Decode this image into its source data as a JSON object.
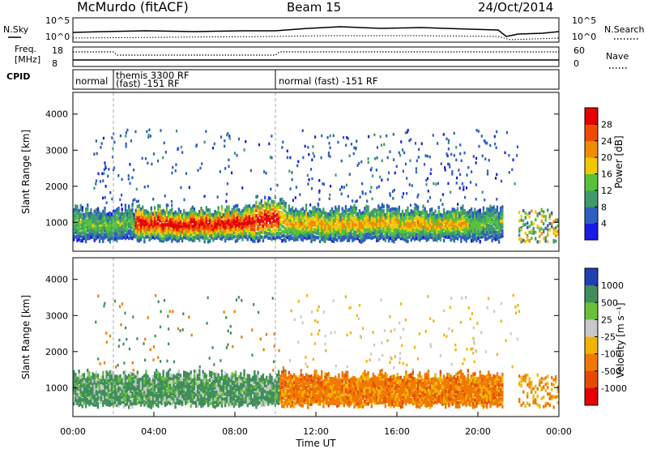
{
  "header": {
    "title": "McMurdo (fitACF)",
    "beam": "Beam 15",
    "date": "24/Oct/2014"
  },
  "top_panels": {
    "nsky_label": "N.Sky",
    "nsearch_label": "N.Search",
    "noise_ticks": [
      "10^5",
      "10^0"
    ],
    "freq_label": "Freq.",
    "freq_unit": "[MHz]",
    "freq_ticks": [
      "18",
      "8"
    ],
    "nave_ticks": [
      "60",
      "0"
    ],
    "nave_label": "Nave",
    "cpid_label": "CPID",
    "cpid_segments": [
      {
        "start_hour": 0.0,
        "end_hour": 2.0,
        "label": "normal"
      },
      {
        "start_hour": 2.0,
        "end_hour": 10.0,
        "label": "themis 3300 RF (fast) -151 RF"
      },
      {
        "start_hour": 10.0,
        "end_hour": 24.0,
        "label": "normal (fast) -151 RF"
      }
    ]
  },
  "chart_data": [
    {
      "type": "heatmap",
      "name": "power",
      "ylabel": "Slant Range [km]",
      "ylim": [
        200,
        4600
      ],
      "yticks": [
        "1000",
        "2000",
        "3000",
        "4000"
      ],
      "xlim": [
        0,
        24
      ],
      "colorbar_label": "Power [dB]",
      "colorbar_ticks": [
        "4",
        "8",
        "12",
        "16",
        "20",
        "24",
        "28"
      ],
      "colorbar_colors": [
        "#1a1ae6",
        "#2d5fbf",
        "#3f9a6e",
        "#55c23a",
        "#f0c800",
        "#f08c00",
        "#f04b00",
        "#e60000"
      ]
    },
    {
      "type": "heatmap",
      "name": "velocity",
      "ylabel": "Slant Range [km]",
      "ylim": [
        200,
        4600
      ],
      "yticks": [
        "1000",
        "2000",
        "3000",
        "4000"
      ],
      "xlim": [
        0,
        24
      ],
      "xticks": [
        "00:00",
        "04:00",
        "08:00",
        "12:00",
        "16:00",
        "20:00",
        "00:00"
      ],
      "xlabel": "Time UT",
      "colorbar_label": "Velocity [m s⁻¹]",
      "colorbar_ticks": [
        "1000",
        "500",
        "25",
        "-25",
        "-100",
        "-500",
        "-1000"
      ],
      "colorbar_colors": [
        "#1f3fb3",
        "#3f8e5a",
        "#6ac03a",
        "#c8c8c8",
        "#f0b400",
        "#f07800",
        "#e64b00",
        "#e60000"
      ]
    }
  ]
}
